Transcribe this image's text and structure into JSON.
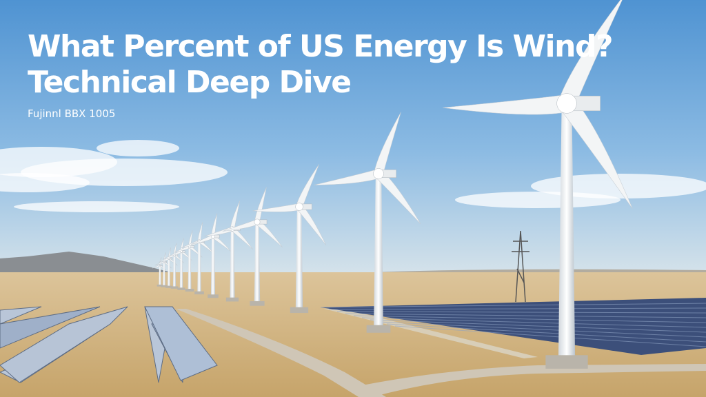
{
  "title": {
    "lines": [
      "What Percent of US Energy Is Wind?",
      "Technical Deep Dive"
    ]
  },
  "subtitle": "Fujinnl BBX 1005"
}
